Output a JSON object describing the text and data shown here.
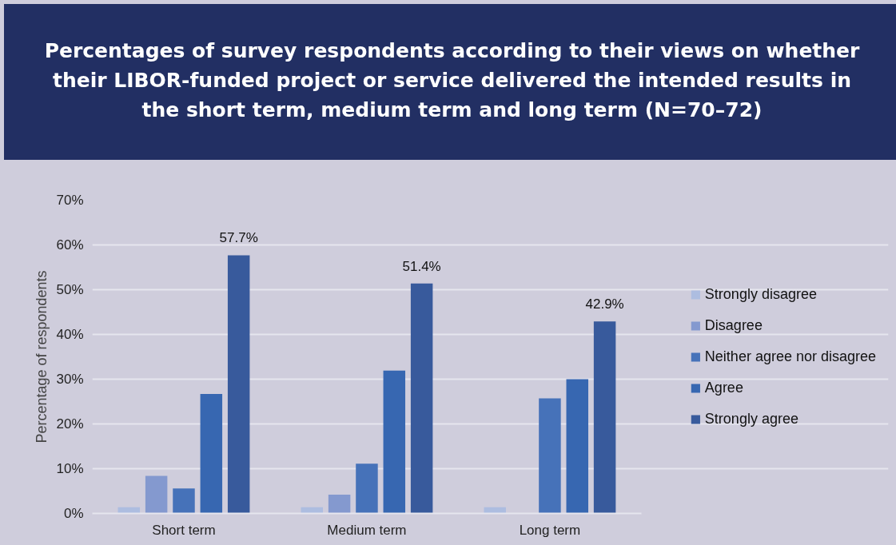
{
  "chart_data": {
    "type": "bar",
    "title": "Percentages of survey respondents according to their views on whether their LIBOR-funded project or service delivered the intended results in the short term, medium term and long term (N=70–72)",
    "categories": [
      "Short term",
      "Medium term",
      "Long term"
    ],
    "ylabel": "Percentage of respondents",
    "ylim": [
      0,
      70
    ],
    "yticks": [
      {
        "value": 0,
        "label": "0%"
      },
      {
        "value": 10,
        "label": "10%"
      },
      {
        "value": 20,
        "label": "20%"
      },
      {
        "value": 30,
        "label": "30%"
      },
      {
        "value": 40,
        "label": "40%"
      },
      {
        "value": 50,
        "label": "50%"
      },
      {
        "value": 60,
        "label": "60%"
      },
      {
        "value": 70,
        "label": "70%"
      }
    ],
    "grid": "y",
    "legend": "right",
    "series": [
      {
        "name": "Strongly disagree",
        "color": "#adbde0",
        "values": [
          1.4,
          1.4,
          1.4
        ]
      },
      {
        "name": "Disagree",
        "color": "#8499cf",
        "values": [
          8.4,
          4.2,
          0
        ]
      },
      {
        "name": "Neither agree nor disagree",
        "color": "#4672b9",
        "values": [
          5.6,
          11.1,
          25.7
        ]
      },
      {
        "name": "Agree",
        "color": "#3767b1",
        "values": [
          26.7,
          31.9,
          30.0
        ]
      },
      {
        "name": "Strongly agree",
        "color": "#385a9c",
        "values": [
          57.7,
          51.4,
          42.9
        ],
        "value_labels": [
          "57.7%",
          "51.4%",
          "42.9%"
        ]
      }
    ]
  }
}
